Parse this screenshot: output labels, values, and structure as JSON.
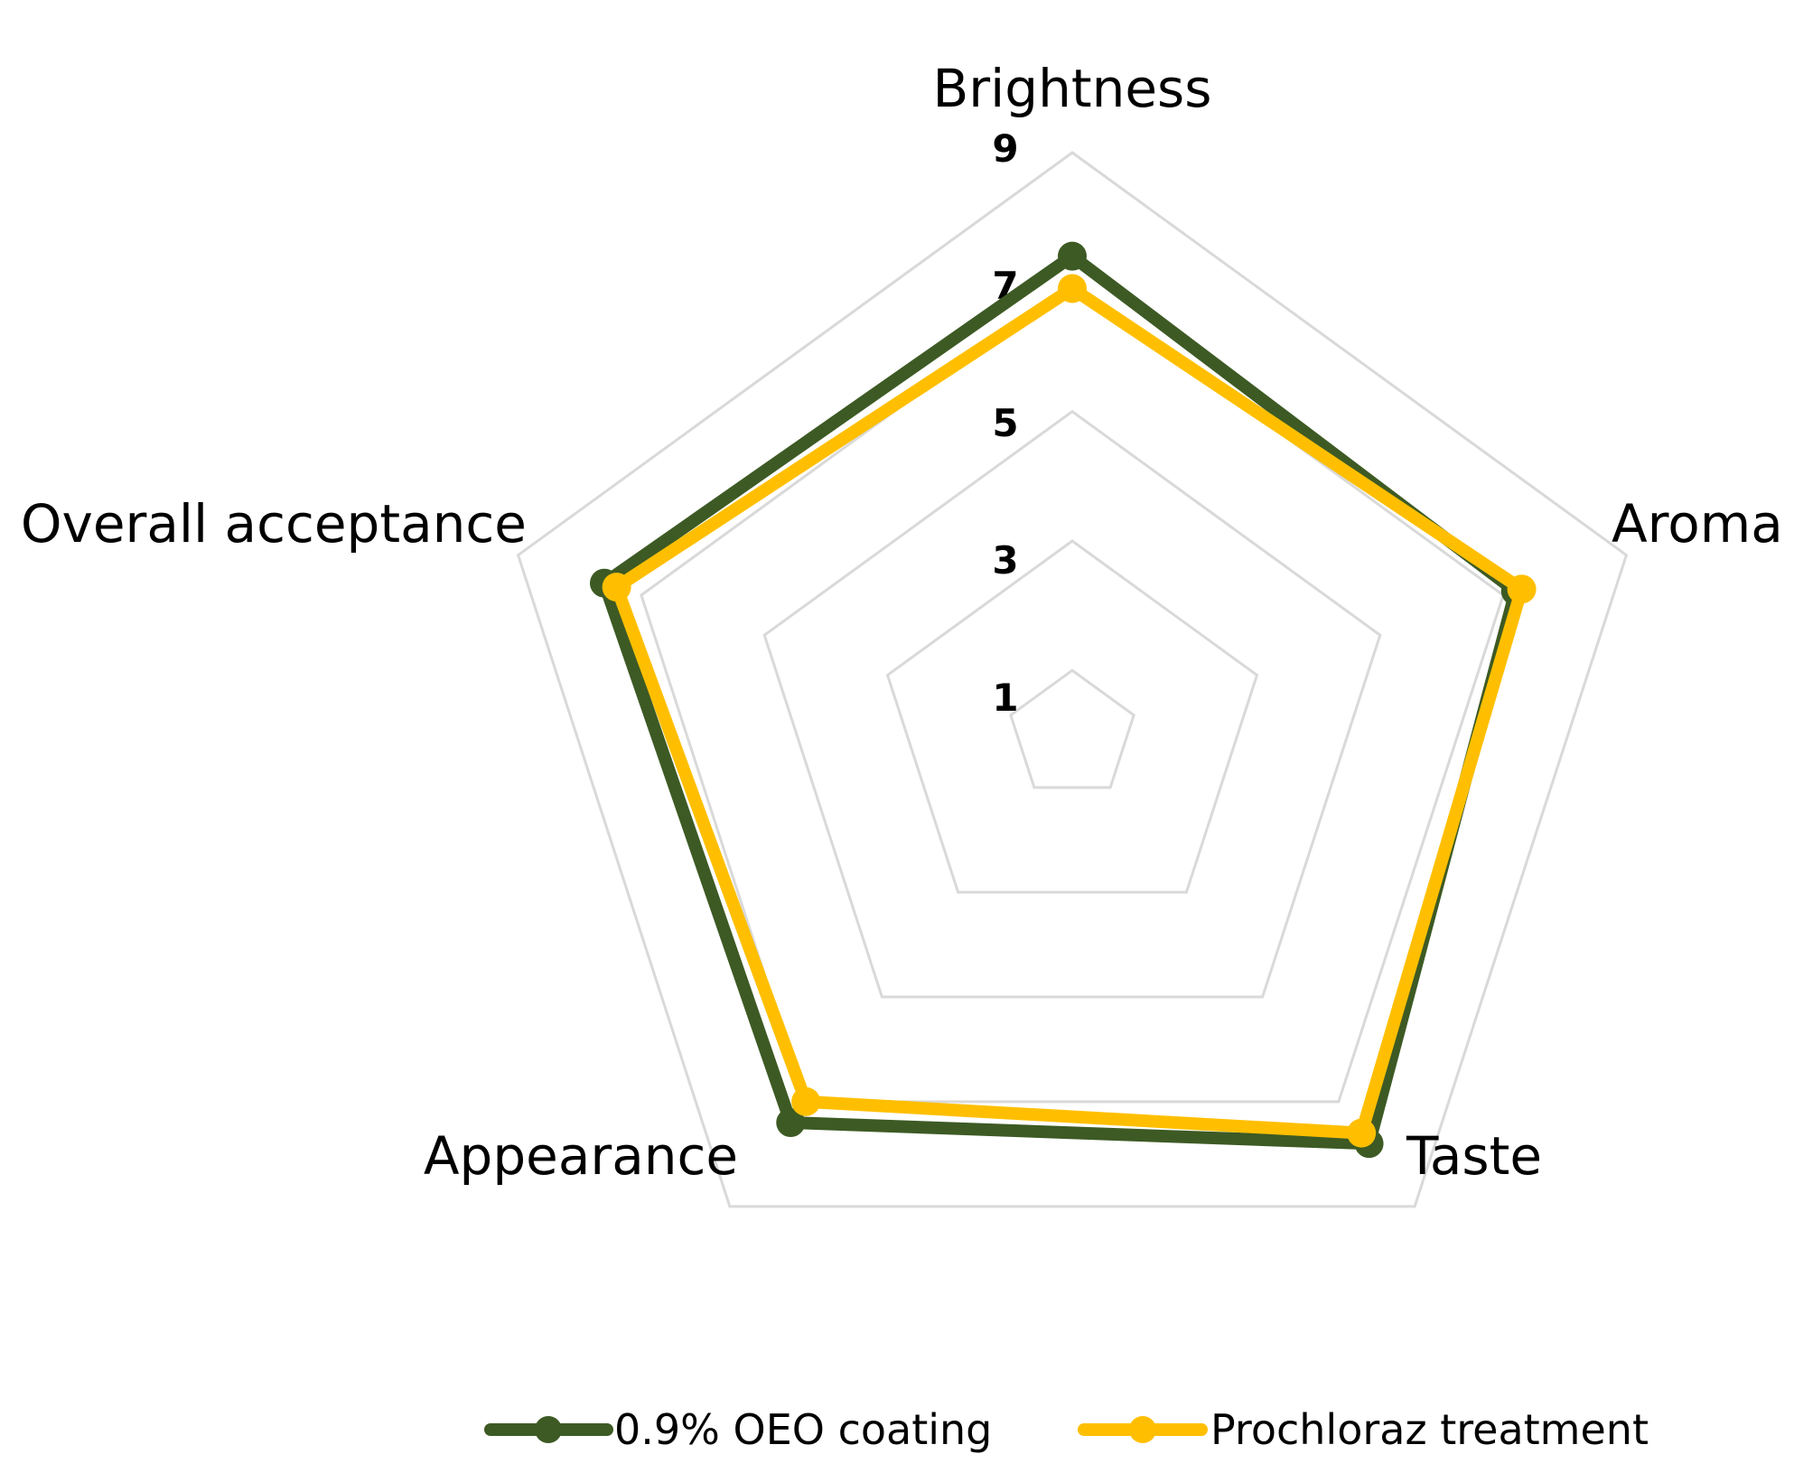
{
  "chart_data": {
    "type": "radar",
    "axes": [
      "Brightness",
      "Aroma",
      "Taste",
      "Appearance",
      "Overall acceptance"
    ],
    "ticks": [
      "1",
      "3",
      "5",
      "7",
      "9"
    ],
    "range": [
      1,
      9
    ],
    "grid": true,
    "legend_position": "bottom",
    "series": [
      {
        "name": "0.9% OEO coating",
        "color": "#3d5a24",
        "values": [
          7.4,
          7.2,
          7.8,
          7.4,
          7.6
        ]
      },
      {
        "name": "Prochloraz treatment",
        "color": "#ffbf00",
        "values": [
          6.9,
          7.3,
          7.6,
          7.0,
          7.4
        ]
      }
    ]
  }
}
